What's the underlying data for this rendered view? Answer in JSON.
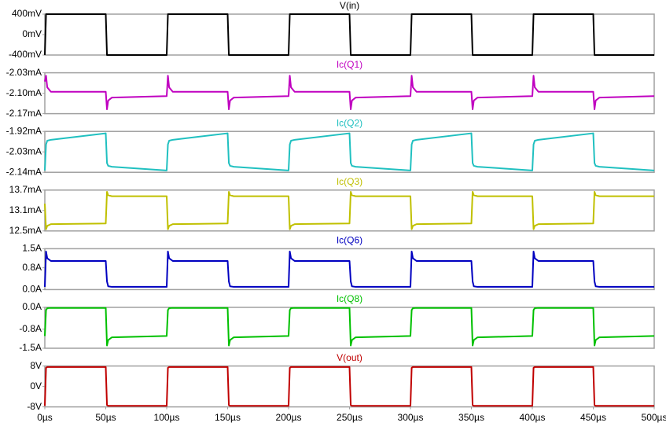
{
  "chart_data": [
    {
      "type": "line",
      "title": "V(in)",
      "color": "#000000",
      "x": [
        0,
        1,
        2,
        5,
        50,
        51,
        52,
        55,
        100,
        101,
        102,
        105,
        150,
        151,
        152,
        155,
        200,
        201,
        202,
        205,
        250,
        251,
        252,
        255,
        300,
        301,
        302,
        305,
        350,
        351,
        352,
        355,
        400,
        401,
        402,
        405,
        450,
        451,
        452,
        455,
        500
      ],
      "values": [
        -400,
        400,
        400,
        400,
        400,
        -400,
        -400,
        -400,
        -400,
        400,
        400,
        400,
        400,
        -400,
        -400,
        -400,
        -400,
        400,
        400,
        400,
        400,
        -400,
        -400,
        -400,
        -400,
        400,
        400,
        400,
        400,
        -400,
        -400,
        -400,
        -400,
        400,
        400,
        400,
        400,
        -400,
        -400,
        -400,
        -400
      ],
      "xlim": [
        0,
        500
      ],
      "ylim": [
        -400,
        400
      ],
      "yticks": [
        {
          "value": 400,
          "label": "400mV"
        },
        {
          "value": 0,
          "label": "0mV"
        },
        {
          "value": -400,
          "label": "-400mV"
        }
      ]
    },
    {
      "type": "line",
      "title": "Ic(Q1)",
      "color": "#c000c0",
      "x": [
        0,
        1,
        2,
        5,
        50,
        51,
        52,
        55,
        100,
        101,
        102,
        105,
        150,
        151,
        152,
        155,
        200,
        201,
        202,
        205,
        250,
        251,
        252,
        255,
        300,
        301,
        302,
        305,
        350,
        351,
        352,
        355,
        400,
        401,
        402,
        405,
        450,
        451,
        452,
        455,
        500
      ],
      "values": [
        -2.06,
        -2.04,
        -2.08,
        -2.095,
        -2.095,
        -2.155,
        -2.125,
        -2.115,
        -2.11,
        -2.04,
        -2.08,
        -2.095,
        -2.095,
        -2.155,
        -2.125,
        -2.115,
        -2.11,
        -2.04,
        -2.08,
        -2.095,
        -2.095,
        -2.155,
        -2.125,
        -2.115,
        -2.11,
        -2.04,
        -2.08,
        -2.095,
        -2.095,
        -2.155,
        -2.125,
        -2.115,
        -2.11,
        -2.04,
        -2.08,
        -2.095,
        -2.095,
        -2.155,
        -2.125,
        -2.115,
        -2.11
      ],
      "xlim": [
        0,
        500
      ],
      "ylim": [
        -2.17,
        -2.03
      ],
      "yticks": [
        {
          "value": -2.03,
          "label": "-2.03mA"
        },
        {
          "value": -2.1,
          "label": "-2.10mA"
        },
        {
          "value": -2.17,
          "label": "-2.17mA"
        }
      ]
    },
    {
      "type": "line",
      "title": "Ic(Q2)",
      "color": "#20c0c0",
      "x": [
        0,
        1,
        2,
        5,
        50,
        51,
        52,
        55,
        100,
        101,
        102,
        105,
        150,
        151,
        152,
        155,
        200,
        201,
        202,
        205,
        250,
        251,
        252,
        255,
        300,
        301,
        302,
        305,
        350,
        351,
        352,
        355,
        400,
        401,
        402,
        405,
        450,
        451,
        452,
        455,
        500
      ],
      "values": [
        -2.13,
        -1.99,
        -1.97,
        -1.965,
        -1.93,
        -2.09,
        -2.105,
        -2.11,
        -2.13,
        -1.99,
        -1.97,
        -1.965,
        -1.93,
        -2.09,
        -2.105,
        -2.11,
        -2.13,
        -1.99,
        -1.97,
        -1.965,
        -1.93,
        -2.09,
        -2.105,
        -2.11,
        -2.13,
        -1.99,
        -1.97,
        -1.965,
        -1.93,
        -2.09,
        -2.105,
        -2.11,
        -2.13,
        -1.99,
        -1.97,
        -1.965,
        -1.93,
        -2.09,
        -2.105,
        -2.11,
        -2.13
      ],
      "xlim": [
        0,
        500
      ],
      "ylim": [
        -2.14,
        -1.92
      ],
      "yticks": [
        {
          "value": -1.92,
          "label": "-1.92mA"
        },
        {
          "value": -2.03,
          "label": "-2.03mA"
        },
        {
          "value": -2.14,
          "label": "-2.14mA"
        }
      ]
    },
    {
      "type": "line",
      "title": "Ic(Q3)",
      "color": "#c0c000",
      "x": [
        0,
        1,
        2,
        5,
        50,
        51,
        52,
        55,
        100,
        101,
        102,
        105,
        150,
        151,
        152,
        155,
        200,
        201,
        202,
        205,
        250,
        251,
        252,
        255,
        300,
        301,
        302,
        305,
        350,
        351,
        352,
        355,
        400,
        401,
        402,
        405,
        450,
        451,
        452,
        455,
        500
      ],
      "values": [
        13.3,
        12.55,
        12.65,
        12.7,
        12.72,
        13.65,
        13.55,
        13.52,
        13.52,
        12.55,
        12.65,
        12.7,
        12.72,
        13.65,
        13.55,
        13.52,
        13.52,
        12.55,
        12.65,
        12.7,
        12.72,
        13.65,
        13.55,
        13.52,
        13.52,
        12.55,
        12.65,
        12.7,
        12.72,
        13.65,
        13.55,
        13.52,
        13.52,
        12.55,
        12.65,
        12.7,
        12.72,
        13.65,
        13.55,
        13.52,
        13.52
      ],
      "xlim": [
        0,
        500
      ],
      "ylim": [
        12.5,
        13.7
      ],
      "yticks": [
        {
          "value": 13.7,
          "label": "13.7mA"
        },
        {
          "value": 13.1,
          "label": "13.1mA"
        },
        {
          "value": 12.5,
          "label": "12.5mA"
        }
      ]
    },
    {
      "type": "line",
      "title": "Ic(Q6)",
      "color": "#0000c0",
      "x": [
        0,
        1,
        2,
        5,
        50,
        51,
        52,
        55,
        100,
        101,
        102,
        105,
        150,
        151,
        152,
        155,
        200,
        201,
        202,
        205,
        250,
        251,
        252,
        255,
        300,
        301,
        302,
        305,
        350,
        351,
        352,
        355,
        400,
        401,
        402,
        405,
        450,
        451,
        452,
        455,
        500
      ],
      "values": [
        0.1,
        1.4,
        1.15,
        1.05,
        1.05,
        0.3,
        0.12,
        0.1,
        0.1,
        1.4,
        1.15,
        1.05,
        1.05,
        0.3,
        0.12,
        0.1,
        0.1,
        1.4,
        1.15,
        1.05,
        1.05,
        0.3,
        0.12,
        0.1,
        0.1,
        1.4,
        1.15,
        1.05,
        1.05,
        0.3,
        0.12,
        0.1,
        0.1,
        1.4,
        1.15,
        1.05,
        1.05,
        0.3,
        0.12,
        0.1,
        0.1
      ],
      "xlim": [
        0,
        500
      ],
      "ylim": [
        0,
        1.5
      ],
      "yticks": [
        {
          "value": 1.5,
          "label": "1.5A"
        },
        {
          "value": 0.8,
          "label": "0.8A"
        },
        {
          "value": 0,
          "label": "0.0A"
        }
      ]
    },
    {
      "type": "line",
      "title": "Ic(Q8)",
      "color": "#00c000",
      "x": [
        0,
        1,
        2,
        5,
        50,
        51,
        52,
        55,
        100,
        101,
        102,
        105,
        150,
        151,
        152,
        155,
        200,
        201,
        202,
        205,
        250,
        251,
        252,
        255,
        300,
        301,
        302,
        305,
        350,
        351,
        352,
        355,
        400,
        401,
        402,
        405,
        450,
        451,
        452,
        455,
        500
      ],
      "values": [
        -1.05,
        -0.1,
        -0.03,
        -0.02,
        -0.02,
        -1.4,
        -1.2,
        -1.1,
        -1.05,
        -0.1,
        -0.03,
        -0.02,
        -0.02,
        -1.4,
        -1.2,
        -1.1,
        -1.05,
        -0.1,
        -0.03,
        -0.02,
        -0.02,
        -1.4,
        -1.2,
        -1.1,
        -1.05,
        -0.1,
        -0.03,
        -0.02,
        -0.02,
        -1.4,
        -1.2,
        -1.1,
        -1.05,
        -0.1,
        -0.03,
        -0.02,
        -0.02,
        -1.4,
        -1.2,
        -1.1,
        -1.05
      ],
      "xlim": [
        0,
        500
      ],
      "ylim": [
        -1.5,
        0
      ],
      "yticks": [
        {
          "value": 0,
          "label": "0.0A"
        },
        {
          "value": -0.8,
          "label": "-0.8A"
        },
        {
          "value": -1.5,
          "label": "-1.5A"
        }
      ]
    },
    {
      "type": "line",
      "title": "V(out)",
      "color": "#c00000",
      "x": [
        0,
        1,
        2,
        5,
        50,
        51,
        52,
        55,
        100,
        101,
        102,
        105,
        150,
        151,
        152,
        155,
        200,
        201,
        202,
        205,
        250,
        251,
        252,
        255,
        300,
        301,
        302,
        305,
        350,
        351,
        352,
        355,
        400,
        401,
        402,
        405,
        450,
        451,
        452,
        455,
        500
      ],
      "values": [
        -7.6,
        7.3,
        7.6,
        7.6,
        7.6,
        -7.3,
        -7.6,
        -7.6,
        -7.6,
        7.3,
        7.6,
        7.6,
        7.6,
        -7.3,
        -7.6,
        -7.6,
        -7.6,
        7.3,
        7.6,
        7.6,
        7.6,
        -7.3,
        -7.6,
        -7.6,
        -7.6,
        7.3,
        7.6,
        7.6,
        7.6,
        -7.3,
        -7.6,
        -7.6,
        -7.6,
        7.3,
        7.6,
        7.6,
        7.6,
        -7.3,
        -7.6,
        -7.6,
        -7.6
      ],
      "xlim": [
        0,
        500
      ],
      "ylim": [
        -8,
        8
      ],
      "yticks": [
        {
          "value": 8,
          "label": "8V"
        },
        {
          "value": 0,
          "label": "0V"
        },
        {
          "value": -8,
          "label": "-8V"
        }
      ],
      "xticks": [
        {
          "value": 0,
          "label": "0µs"
        },
        {
          "value": 50,
          "label": "50µs"
        },
        {
          "value": 100,
          "label": "100µs"
        },
        {
          "value": 150,
          "label": "150µs"
        },
        {
          "value": 200,
          "label": "200µs"
        },
        {
          "value": 250,
          "label": "250µs"
        },
        {
          "value": 300,
          "label": "300µs"
        },
        {
          "value": 350,
          "label": "350µs"
        },
        {
          "value": 400,
          "label": "400µs"
        },
        {
          "value": 450,
          "label": "450µs"
        },
        {
          "value": 500,
          "label": "500µs"
        }
      ]
    }
  ]
}
